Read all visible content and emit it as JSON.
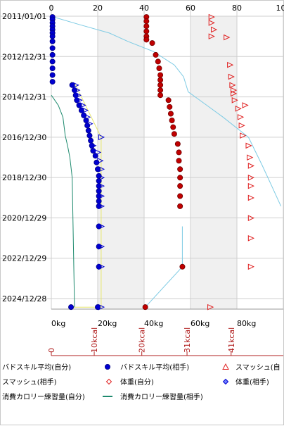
{
  "chart_data": {
    "type": "scatter",
    "y_axis": {
      "kind": "date",
      "ticks": [
        "2011/01/01",
        "2012/12/31",
        "2014/12/31",
        "2016/12/30",
        "2018/12/30",
        "2020/12/29",
        "2022/12/29",
        "2024/12/28"
      ],
      "direction": "top-to-bottom"
    },
    "x_axis_top": {
      "ticks": [
        "0",
        "20",
        "40",
        "60",
        "80",
        "100"
      ],
      "range": [
        0,
        100
      ]
    },
    "x_axis_kg": {
      "ticks": [
        "0kg",
        "20kg",
        "40kg",
        "60kg",
        "80kg"
      ],
      "range": [
        0,
        100
      ]
    },
    "x_axis_kcal": {
      "ticks": [
        "0",
        "10kcal",
        "20kcal",
        "31kcal",
        "41kcal"
      ],
      "color": "#b22222"
    },
    "grid": true,
    "shaded_bands": [
      [
        20,
        40
      ],
      [
        60,
        80
      ]
    ],
    "series": [
      {
        "name": "バドスキル平均(自分)",
        "marker": "circle-blue",
        "color": "#0000cc",
        "points": [
          {
            "x": 0.5,
            "y": "2011-01-15"
          },
          {
            "x": 0.5,
            "y": "2011-03-01"
          },
          {
            "x": 0.5,
            "y": "2011-05-01"
          },
          {
            "x": 0.5,
            "y": "2011-07-01"
          },
          {
            "x": 0.5,
            "y": "2011-09-01"
          },
          {
            "x": 0.5,
            "y": "2011-11-01"
          },
          {
            "x": 0.5,
            "y": "2012-01-01"
          },
          {
            "x": 0.5,
            "y": "2012-04-01"
          },
          {
            "x": 0.5,
            "y": "2012-08-01"
          },
          {
            "x": 0.5,
            "y": "2012-12-01"
          },
          {
            "x": 0.5,
            "y": "2013-04-01"
          },
          {
            "x": 0.5,
            "y": "2013-08-01"
          },
          {
            "x": 0.5,
            "y": "2013-12-01"
          },
          {
            "x": 0.5,
            "y": "2014-04-01"
          },
          {
            "x": 9,
            "y": "2014-06-01"
          },
          {
            "x": 10,
            "y": "2014-09-01"
          },
          {
            "x": 10.5,
            "y": "2014-12-01"
          },
          {
            "x": 11,
            "y": "2015-03-01"
          },
          {
            "x": 12,
            "y": "2015-06-01"
          },
          {
            "x": 13,
            "y": "2015-09-01"
          },
          {
            "x": 14,
            "y": "2015-12-01"
          },
          {
            "x": 15,
            "y": "2016-03-01"
          },
          {
            "x": 15.5,
            "y": "2016-06-01"
          },
          {
            "x": 16,
            "y": "2016-09-01"
          },
          {
            "x": 16.5,
            "y": "2016-12-01"
          },
          {
            "x": 17,
            "y": "2017-03-01"
          },
          {
            "x": 17.5,
            "y": "2017-06-01"
          },
          {
            "x": 18,
            "y": "2017-09-01"
          },
          {
            "x": 19,
            "y": "2017-12-01"
          },
          {
            "x": 19.5,
            "y": "2018-04-01"
          },
          {
            "x": 20,
            "y": "2018-08-01"
          },
          {
            "x": 20.5,
            "y": "2018-12-01"
          },
          {
            "x": 20.5,
            "y": "2019-03-01"
          },
          {
            "x": 20.5,
            "y": "2019-06-01"
          },
          {
            "x": 20.5,
            "y": "2019-09-01"
          },
          {
            "x": 20.5,
            "y": "2019-12-01"
          },
          {
            "x": 20.5,
            "y": "2020-03-01"
          },
          {
            "x": 20.5,
            "y": "2020-06-01"
          },
          {
            "x": 20.5,
            "y": "2021-06-01"
          },
          {
            "x": 20.5,
            "y": "2022-06-01"
          },
          {
            "x": 20.5,
            "y": "2023-06-01"
          },
          {
            "x": 8.5,
            "y": "2025-06-01"
          },
          {
            "x": 20,
            "y": "2025-06-01"
          }
        ]
      },
      {
        "name": "バドスキル平均(相手)",
        "marker": "triangle-right-blue",
        "color": "#0000cc",
        "points": [
          {
            "x": 10.5,
            "y": "2014-06-01"
          },
          {
            "x": 11,
            "y": "2014-09-01"
          },
          {
            "x": 11.5,
            "y": "2014-12-01"
          },
          {
            "x": 12,
            "y": "2015-03-01"
          },
          {
            "x": 13.5,
            "y": "2015-06-01"
          },
          {
            "x": 14.5,
            "y": "2015-09-01"
          },
          {
            "x": 15.5,
            "y": "2016-01-01"
          },
          {
            "x": 16.5,
            "y": "2016-05-01"
          },
          {
            "x": 21.5,
            "y": "2016-12-30"
          },
          {
            "x": 18,
            "y": "2017-06-01"
          },
          {
            "x": 20,
            "y": "2017-10-01"
          },
          {
            "x": 21,
            "y": "2018-03-01"
          },
          {
            "x": 21.5,
            "y": "2018-08-01"
          },
          {
            "x": 21.5,
            "y": "2019-01-01"
          },
          {
            "x": 21.5,
            "y": "2019-06-01"
          },
          {
            "x": 21.5,
            "y": "2019-12-01"
          },
          {
            "x": 21.5,
            "y": "2020-06-01"
          },
          {
            "x": 21.5,
            "y": "2021-06-01"
          },
          {
            "x": 21.5,
            "y": "2022-06-01"
          },
          {
            "x": 21.5,
            "y": "2023-06-01"
          },
          {
            "x": 21.5,
            "y": "2025-06-01"
          }
        ]
      },
      {
        "name": "スマッシュ(自分)",
        "marker": "circle-red",
        "color": "#cc0000",
        "points": [
          {
            "x": 41,
            "y": "2011-01-15"
          },
          {
            "x": 41,
            "y": "2011-04-01"
          },
          {
            "x": 41,
            "y": "2011-07-01"
          },
          {
            "x": 41,
            "y": "2011-10-01"
          },
          {
            "x": 41,
            "y": "2012-01-01"
          },
          {
            "x": 41,
            "y": "2012-03-01"
          },
          {
            "x": 43.5,
            "y": "2012-05-01"
          },
          {
            "x": 45,
            "y": "2012-12-01"
          },
          {
            "x": 46,
            "y": "2013-04-01"
          },
          {
            "x": 46.5,
            "y": "2013-08-01"
          },
          {
            "x": 47,
            "y": "2013-12-01"
          },
          {
            "x": 47,
            "y": "2014-03-01"
          },
          {
            "x": 47,
            "y": "2014-06-01"
          },
          {
            "x": 47,
            "y": "2014-09-01"
          },
          {
            "x": 47,
            "y": "2014-12-01"
          },
          {
            "x": 50.5,
            "y": "2015-03-01"
          },
          {
            "x": 51,
            "y": "2015-07-01"
          },
          {
            "x": 51.5,
            "y": "2015-11-01"
          },
          {
            "x": 52,
            "y": "2016-03-01"
          },
          {
            "x": 52.5,
            "y": "2016-07-01"
          },
          {
            "x": 53,
            "y": "2016-11-01"
          },
          {
            "x": 54.5,
            "y": "2017-05-01"
          },
          {
            "x": 55,
            "y": "2017-10-01"
          },
          {
            "x": 55,
            "y": "2018-03-01"
          },
          {
            "x": 55.5,
            "y": "2018-08-01"
          },
          {
            "x": 55.5,
            "y": "2019-01-01"
          },
          {
            "x": 55.5,
            "y": "2019-06-01"
          },
          {
            "x": 55.5,
            "y": "2019-12-01"
          },
          {
            "x": 55.5,
            "y": "2020-06-01"
          },
          {
            "x": 56.5,
            "y": "2023-06-01"
          },
          {
            "x": 40.5,
            "y": "2025-06-01"
          }
        ]
      },
      {
        "name": "スマッシュ(相手)",
        "marker": "triangle-right-red",
        "color": "#cc0000",
        "points": [
          {
            "x": 69,
            "y": "2011-01-15"
          },
          {
            "x": 69,
            "y": "2011-05-01"
          },
          {
            "x": 70,
            "y": "2011-09-01"
          },
          {
            "x": 69,
            "y": "2012-01-01"
          },
          {
            "x": 75.5,
            "y": "2012-01-20"
          },
          {
            "x": 77,
            "y": "2013-06-01"
          },
          {
            "x": 77.5,
            "y": "2014-01-01"
          },
          {
            "x": 78,
            "y": "2014-06-01"
          },
          {
            "x": 78.5,
            "y": "2014-09-01"
          },
          {
            "x": 78.5,
            "y": "2014-11-01"
          },
          {
            "x": 79,
            "y": "2015-03-01"
          },
          {
            "x": 83.5,
            "y": "2015-06-01"
          },
          {
            "x": 80.5,
            "y": "2015-08-01"
          },
          {
            "x": 81.5,
            "y": "2016-01-01"
          },
          {
            "x": 82,
            "y": "2016-06-01"
          },
          {
            "x": 82.5,
            "y": "2016-12-01"
          },
          {
            "x": 85,
            "y": "2017-06-01"
          },
          {
            "x": 85.5,
            "y": "2018-01-01"
          },
          {
            "x": 86,
            "y": "2018-06-01"
          },
          {
            "x": 86,
            "y": "2019-01-01"
          },
          {
            "x": 86,
            "y": "2019-06-01"
          },
          {
            "x": 86,
            "y": "2020-01-01"
          },
          {
            "x": 86,
            "y": "2021-01-01"
          },
          {
            "x": 86,
            "y": "2022-01-01"
          },
          {
            "x": 86,
            "y": "2023-06-01"
          },
          {
            "x": 68.5,
            "y": "2025-06-01"
          }
        ]
      },
      {
        "name": "体重(自分)",
        "line": "#7ecbe4",
        "marker": "diamond-red-open",
        "points": [
          {
            "x": 1,
            "y": "2011-01-15"
          },
          {
            "x": 12,
            "y": "2011-06-01"
          },
          {
            "x": 25,
            "y": "2011-11-01"
          },
          {
            "x": 33,
            "y": "2012-04-01"
          },
          {
            "x": 44,
            "y": "2012-10-01"
          },
          {
            "x": 53,
            "y": "2013-06-01"
          },
          {
            "x": 57,
            "y": "2014-01-01"
          },
          {
            "x": 59,
            "y": "2014-10-01"
          },
          {
            "x": 67,
            "y": "2015-06-01"
          },
          {
            "x": 74,
            "y": "2016-01-01"
          },
          {
            "x": 85,
            "y": "2017-01-01"
          },
          {
            "x": 91,
            "y": "2018-06-01"
          },
          {
            "x": 95,
            "y": "2019-06-01"
          },
          {
            "x": 99,
            "y": "2020-06-01"
          }
        ]
      },
      {
        "name": "体重(相手)",
        "line": "#7ecbe4",
        "marker": "diamond-blue-open",
        "points": [
          {
            "x": 56.5,
            "y": "2021-06-01"
          },
          {
            "x": 56.5,
            "y": "2023-06-01"
          },
          {
            "x": 40.5,
            "y": "2025-06-01"
          }
        ]
      },
      {
        "name": "消費カロリー練習量(自分)",
        "line": "#e5e56a",
        "points": [
          {
            "x": 8.5,
            "y": "2014-04-01"
          },
          {
            "x": 10.5,
            "y": "2014-06-01"
          },
          {
            "x": 21.5,
            "y": "2017-01-01"
          },
          {
            "x": 21.5,
            "y": "2025-06-01"
          },
          {
            "x": 9,
            "y": "2025-06-01"
          }
        ]
      },
      {
        "name": "消費カロリー練習量(相手)",
        "line": "#1e8a6e",
        "points": [
          {
            "x": 0,
            "y": "2014-12-01"
          },
          {
            "x": 3,
            "y": "2015-06-01"
          },
          {
            "x": 5,
            "y": "2016-01-01"
          },
          {
            "x": 6,
            "y": "2016-12-01"
          },
          {
            "x": 7,
            "y": "2017-06-01"
          },
          {
            "x": 8,
            "y": "2018-01-01"
          },
          {
            "x": 9,
            "y": "2019-01-01"
          },
          {
            "x": 10,
            "y": "2025-06-01"
          }
        ]
      }
    ],
    "legend": {
      "placement": "bottom",
      "rows": [
        [
          {
            "label": "バドスキル平均(自分)",
            "symbol": ""
          },
          {
            "label": "バドスキル平均(相手)",
            "symbol": "circle-blue"
          },
          {
            "label": "スマッシュ(自",
            "symbol": "triangle-red"
          }
        ],
        [
          {
            "label": "スマッシュ(相手)",
            "symbol": ""
          },
          {
            "label": "体重(自分)",
            "symbol": "diamond-red"
          },
          {
            "label": "体重(相手)",
            "symbol": "diamond-blue"
          }
        ],
        [
          {
            "label": "消費カロリー練習量(自分)",
            "symbol": ""
          },
          {
            "label": "消費カロリー練習量(相手)",
            "symbol": "line-green"
          }
        ]
      ]
    }
  }
}
